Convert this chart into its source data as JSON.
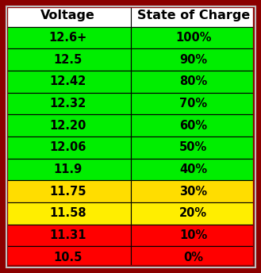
{
  "headers": [
    "Voltage",
    "State of Charge"
  ],
  "rows": [
    {
      "voltage": "12.6+",
      "charge": "100%",
      "color": "#00ee00"
    },
    {
      "voltage": "12.5",
      "charge": "90%",
      "color": "#00ee00"
    },
    {
      "voltage": "12.42",
      "charge": "80%",
      "color": "#00ee00"
    },
    {
      "voltage": "12.32",
      "charge": "70%",
      "color": "#00ee00"
    },
    {
      "voltage": "12.20",
      "charge": "60%",
      "color": "#00ee00"
    },
    {
      "voltage": "12.06",
      "charge": "50%",
      "color": "#00ee00"
    },
    {
      "voltage": "11.9",
      "charge": "40%",
      "color": "#00ee00"
    },
    {
      "voltage": "11.75",
      "charge": "30%",
      "color": "#ffdd00"
    },
    {
      "voltage": "11.58",
      "charge": "20%",
      "color": "#ffee00"
    },
    {
      "voltage": "11.31",
      "charge": "10%",
      "color": "#ff0000"
    },
    {
      "voltage": "10.5",
      "charge": "0%",
      "color": "#ff0000"
    }
  ],
  "header_bg": "#ffffff",
  "header_text_color": "#000000",
  "cell_text_color": "#000000",
  "outer_border_color": "#8b0000",
  "outer_border_light": "#c0c0c0",
  "font_size": 10.5,
  "header_font_size": 11.5
}
